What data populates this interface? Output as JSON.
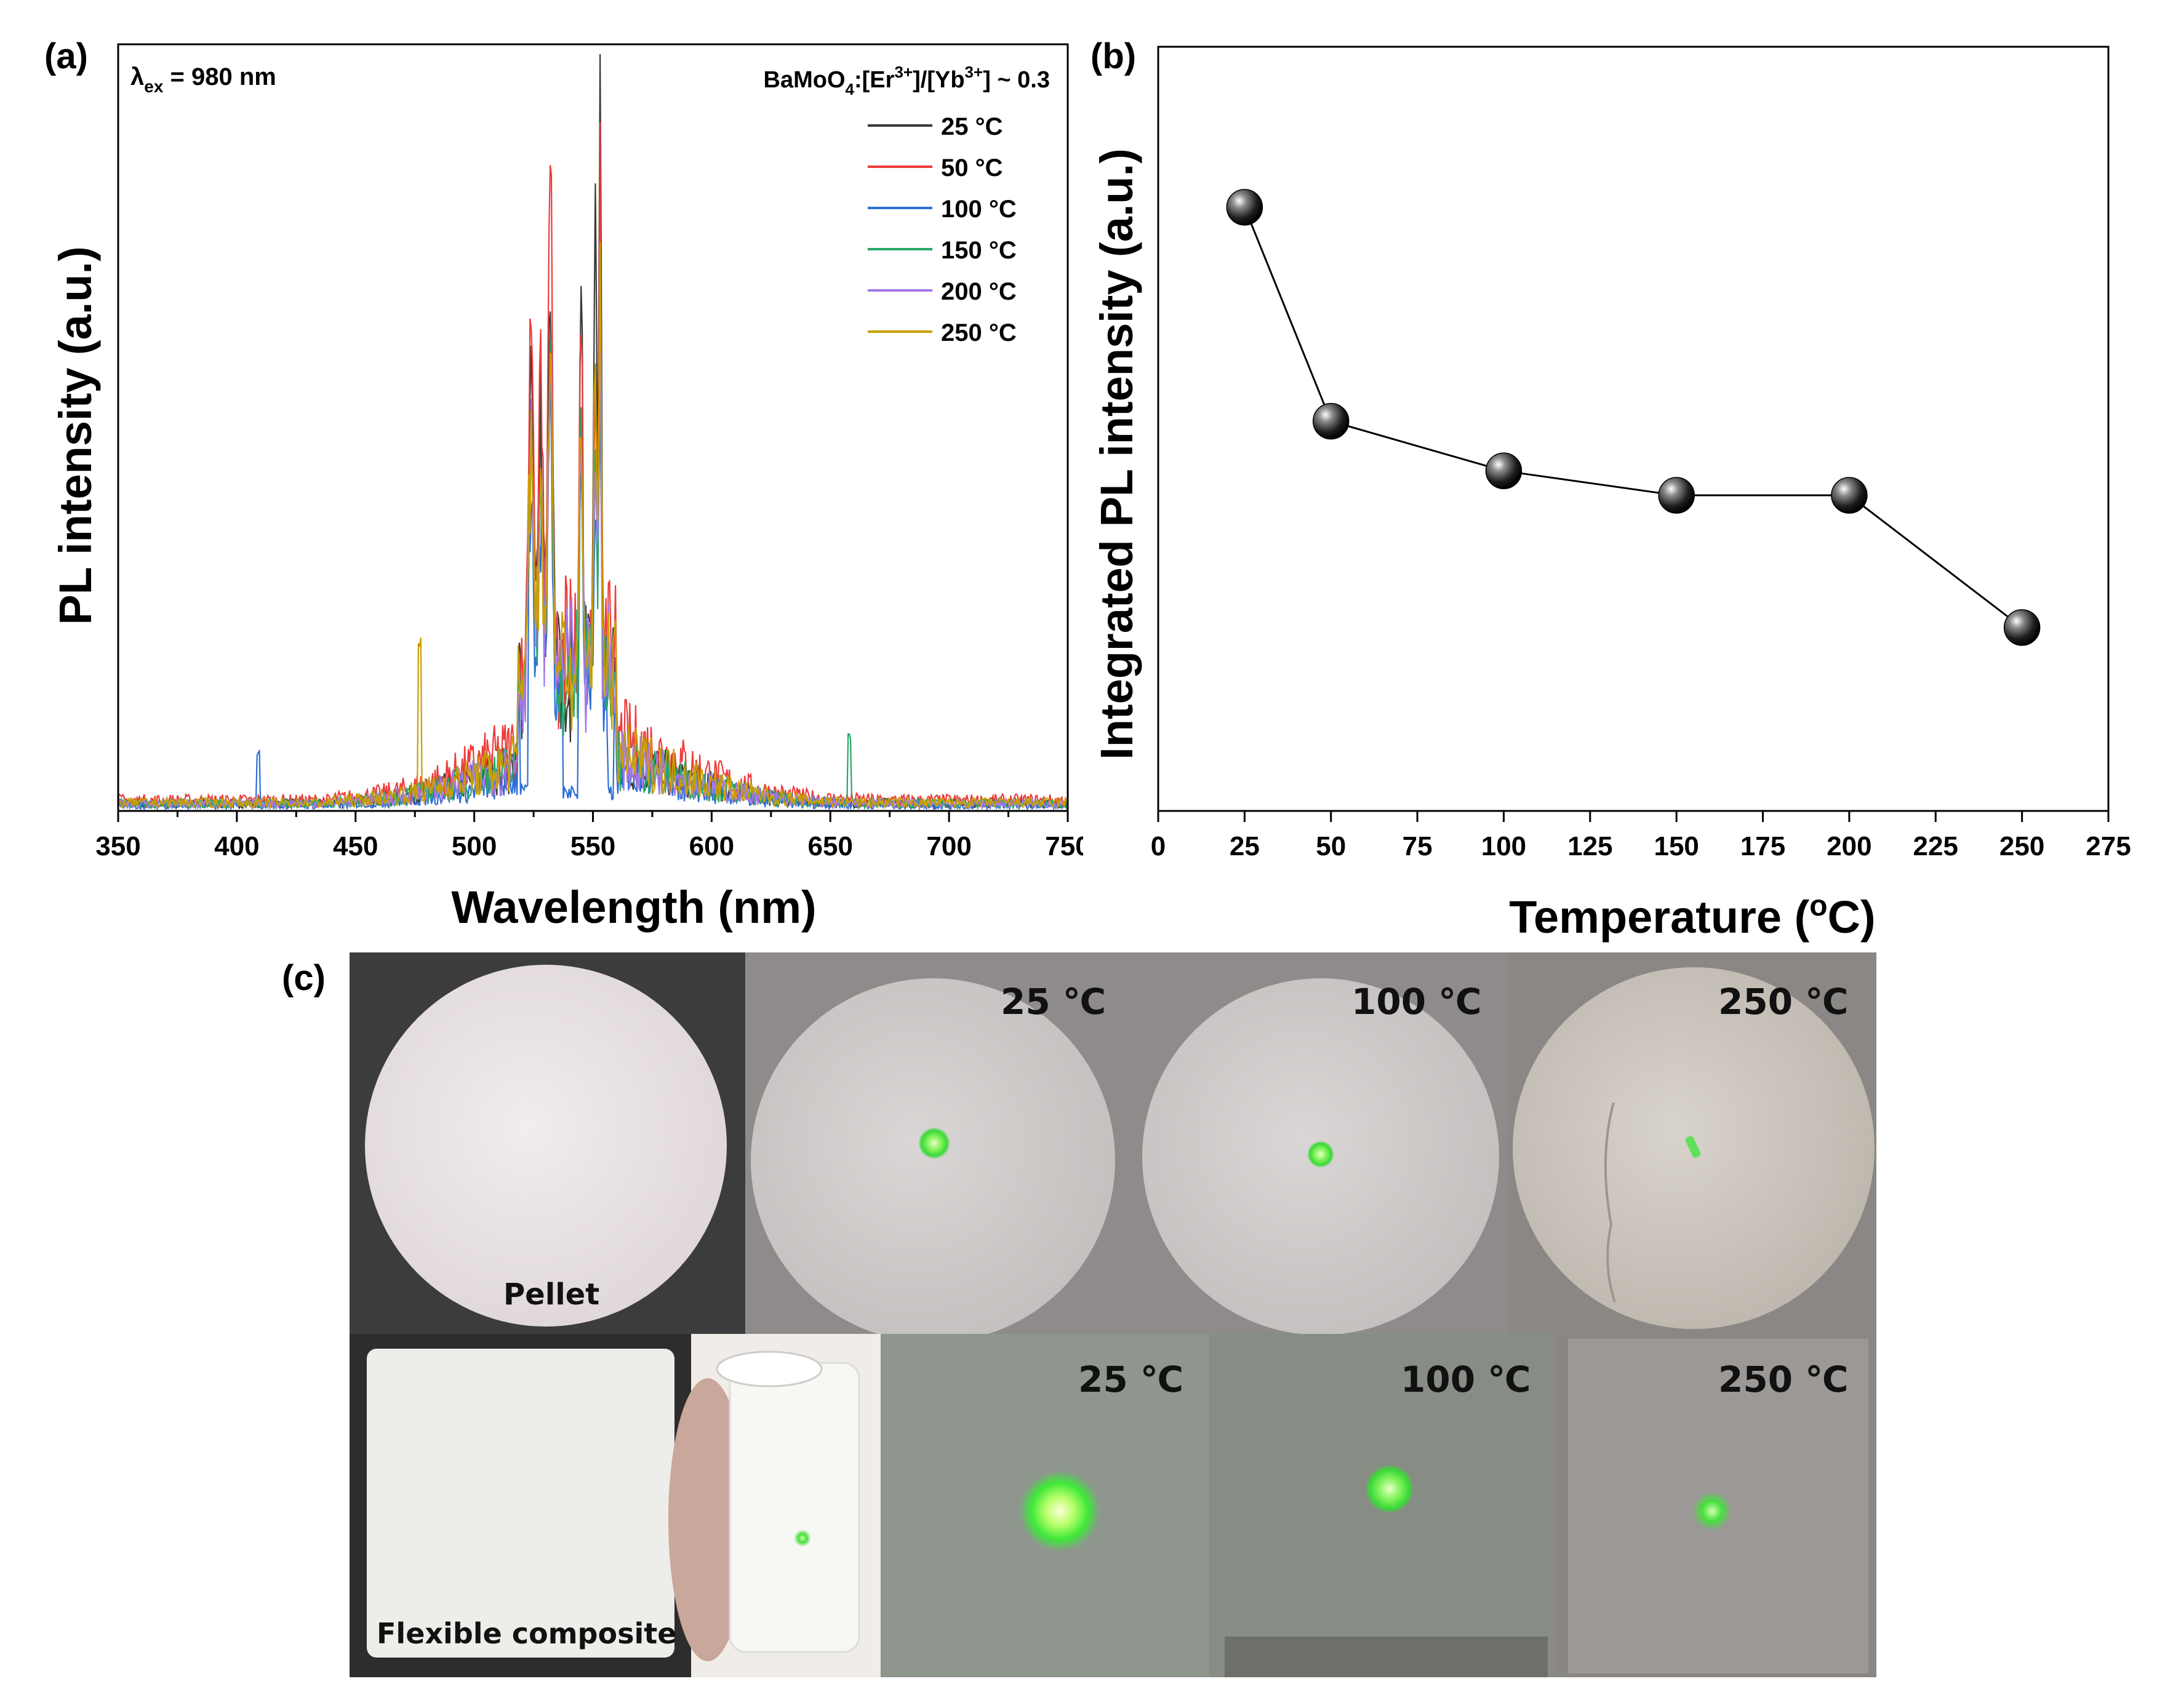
{
  "colors": {
    "t25": "#3a3a3a",
    "t50": "#ee3b3b",
    "t100": "#2c6fd6",
    "t150": "#24a866",
    "t200": "#a477e8",
    "t250": "#c9a000"
  },
  "chart_data": [
    {
      "panel": "(a)",
      "type": "line",
      "xlabel": "Wavelength (nm)",
      "ylabel": "PL intensity (a.u.)",
      "xlim": [
        350,
        750
      ],
      "xticks": [
        "350",
        "400",
        "450",
        "500",
        "550",
        "600",
        "650",
        "700",
        "750"
      ],
      "annotation_excitation": "λex = 980 nm",
      "legend_title": "BaMoO4:[Er3+]/[Yb3+] ~ 0.3",
      "legend_position": "top-right",
      "series": [
        {
          "name": "25 °C",
          "color_key": "t25",
          "peak_532": 0.56,
          "peak_545": 0.52,
          "peak_553": 1.0,
          "background": 0.05
        },
        {
          "name": "50 °C",
          "color_key": "t50",
          "peak_532": 0.63,
          "peak_545": 0.45,
          "peak_553": 0.68,
          "background": 0.07
        },
        {
          "name": "100 °C",
          "color_key": "t100",
          "peak_532": 0.38,
          "peak_545": 0.3,
          "peak_553": 0.45,
          "background": 0.035
        },
        {
          "name": "150 °C",
          "color_key": "t150",
          "peak_532": 0.4,
          "peak_545": 0.32,
          "peak_553": 0.5,
          "background": 0.05
        },
        {
          "name": "200 °C",
          "color_key": "t200",
          "peak_532": 0.42,
          "peak_545": 0.34,
          "peak_553": 0.52,
          "background": 0.05
        },
        {
          "name": "250 °C",
          "color_key": "t250",
          "peak_532": 0.45,
          "peak_545": 0.36,
          "peak_553": 0.6,
          "background": 0.055
        }
      ]
    },
    {
      "panel": "(b)",
      "type": "line",
      "xlabel": "Temperature (°C)",
      "ylabel": "Integrated PL intensity (a.u.)",
      "xlim": [
        0,
        275
      ],
      "xticks": [
        "0",
        "25",
        "50",
        "75",
        "100",
        "125",
        "150",
        "175",
        "200",
        "225",
        "250",
        "275"
      ],
      "x": [
        25,
        50,
        100,
        150,
        200,
        250
      ],
      "y": [
        0.79,
        0.51,
        0.445,
        0.413,
        0.413,
        0.24
      ],
      "ylim": [
        0,
        1
      ]
    }
  ],
  "photos": {
    "panel_label": "(c)",
    "pellet_label": "Pellet",
    "composite_label": "Flexible composite",
    "temps": [
      "25 ℃",
      "100 ℃",
      "250 ℃"
    ]
  }
}
